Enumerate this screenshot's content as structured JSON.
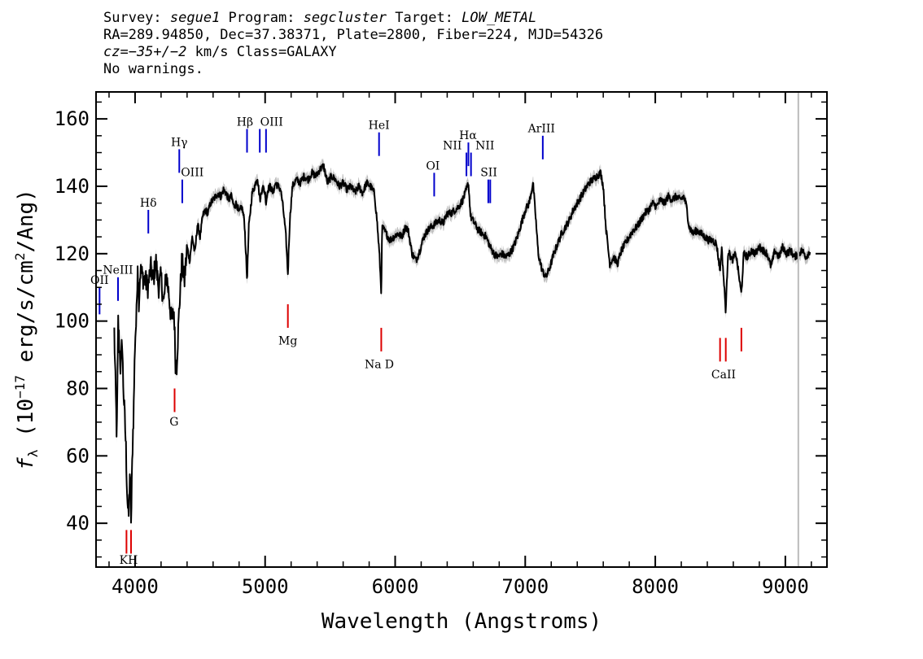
{
  "header": {
    "line1": {
      "survey_label": "Survey: ",
      "survey": "segue1",
      "program_label": " Program: ",
      "program": "segcluster",
      "target_label": " Target: ",
      "target": "LOW_METAL"
    },
    "line2": "RA=289.94850, Dec=37.38371, Plate=2800, Fiber=224, MJD=54326",
    "line3": {
      "cz": "cz=−35+/−2",
      "rest": " km/s Class=GALAXY"
    },
    "line4": "No warnings."
  },
  "chart_data": {
    "type": "line",
    "xlabel": "Wavelength (Angstroms)",
    "ylabel": "f_λ (10^-17 erg/s/cm^2/Ang)",
    "xlim": [
      3700,
      9320
    ],
    "ylim": [
      27,
      168
    ],
    "x_ticks": [
      4000,
      5000,
      6000,
      7000,
      8000,
      9000
    ],
    "y_ticks": [
      40,
      60,
      80,
      100,
      120,
      140,
      160
    ],
    "marker_line_x": 9100,
    "colors": {
      "flux": "#000000",
      "error": "#c0c0c0",
      "emission": "#0000cc",
      "absorption": "#dd0000",
      "marker": "#bbbbbb"
    },
    "spectrum": [
      [
        3840,
        97
      ],
      [
        3850,
        80
      ],
      [
        3860,
        65
      ],
      [
        3870,
        100
      ],
      [
        3880,
        92
      ],
      [
        3890,
        85
      ],
      [
        3900,
        95
      ],
      [
        3910,
        80
      ],
      [
        3920,
        72
      ],
      [
        3930,
        62
      ],
      [
        3940,
        48
      ],
      [
        3950,
        41
      ],
      [
        3960,
        55
      ],
      [
        3970,
        40
      ],
      [
        3980,
        62
      ],
      [
        3990,
        75
      ],
      [
        4000,
        95
      ],
      [
        4010,
        100
      ],
      [
        4020,
        118
      ],
      [
        4030,
        105
      ],
      [
        4040,
        115
      ],
      [
        4060,
        113
      ],
      [
        4080,
        112
      ],
      [
        4100,
        110
      ],
      [
        4120,
        116
      ],
      [
        4140,
        112
      ],
      [
        4160,
        118
      ],
      [
        4180,
        110
      ],
      [
        4200,
        113
      ],
      [
        4220,
        105
      ],
      [
        4240,
        114
      ],
      [
        4260,
        108
      ],
      [
        4280,
        100
      ],
      [
        4300,
        103
      ],
      [
        4310,
        88
      ],
      [
        4320,
        87
      ],
      [
        4340,
        104
      ],
      [
        4360,
        118
      ],
      [
        4380,
        112
      ],
      [
        4400,
        122
      ],
      [
        4420,
        118
      ],
      [
        4440,
        125
      ],
      [
        4460,
        120
      ],
      [
        4480,
        129
      ],
      [
        4500,
        125
      ],
      [
        4520,
        131
      ],
      [
        4540,
        133
      ],
      [
        4560,
        132
      ],
      [
        4580,
        135
      ],
      [
        4600,
        136
      ],
      [
        4620,
        137
      ],
      [
        4640,
        138
      ],
      [
        4660,
        137
      ],
      [
        4680,
        139
      ],
      [
        4700,
        138
      ],
      [
        4720,
        136
      ],
      [
        4740,
        137
      ],
      [
        4760,
        134
      ],
      [
        4780,
        135
      ],
      [
        4800,
        132
      ],
      [
        4820,
        134
      ],
      [
        4840,
        130
      ],
      [
        4850,
        122
      ],
      [
        4861,
        112
      ],
      [
        4875,
        128
      ],
      [
        4900,
        138
      ],
      [
        4920,
        140
      ],
      [
        4940,
        143
      ],
      [
        4960,
        136
      ],
      [
        4980,
        140
      ],
      [
        5000,
        138
      ],
      [
        5007,
        135
      ],
      [
        5020,
        139
      ],
      [
        5040,
        140
      ],
      [
        5060,
        138
      ],
      [
        5080,
        141
      ],
      [
        5100,
        140
      ],
      [
        5120,
        139
      ],
      [
        5140,
        133
      ],
      [
        5160,
        125
      ],
      [
        5175,
        114
      ],
      [
        5190,
        130
      ],
      [
        5210,
        140
      ],
      [
        5240,
        142
      ],
      [
        5270,
        141
      ],
      [
        5300,
        143
      ],
      [
        5330,
        142
      ],
      [
        5360,
        144
      ],
      [
        5390,
        143
      ],
      [
        5420,
        145
      ],
      [
        5450,
        146
      ],
      [
        5480,
        141
      ],
      [
        5510,
        143
      ],
      [
        5540,
        142
      ],
      [
        5570,
        140
      ],
      [
        5600,
        141
      ],
      [
        5630,
        139
      ],
      [
        5660,
        140
      ],
      [
        5690,
        138
      ],
      [
        5720,
        140
      ],
      [
        5750,
        138
      ],
      [
        5780,
        141
      ],
      [
        5810,
        140
      ],
      [
        5840,
        138
      ],
      [
        5860,
        130
      ],
      [
        5880,
        119
      ],
      [
        5893,
        108
      ],
      [
        5900,
        128
      ],
      [
        5930,
        126
      ],
      [
        5960,
        124
      ],
      [
        5990,
        125
      ],
      [
        6020,
        126
      ],
      [
        6050,
        125
      ],
      [
        6080,
        128
      ],
      [
        6100,
        127
      ],
      [
        6130,
        120
      ],
      [
        6160,
        118
      ],
      [
        6190,
        121
      ],
      [
        6220,
        125
      ],
      [
        6250,
        127
      ],
      [
        6280,
        128
      ],
      [
        6310,
        129
      ],
      [
        6340,
        130
      ],
      [
        6370,
        129
      ],
      [
        6400,
        132
      ],
      [
        6430,
        132
      ],
      [
        6460,
        133
      ],
      [
        6490,
        134
      ],
      [
        6520,
        136
      ],
      [
        6540,
        138
      ],
      [
        6563,
        141
      ],
      [
        6580,
        131
      ],
      [
        6610,
        129
      ],
      [
        6640,
        127
      ],
      [
        6670,
        126
      ],
      [
        6700,
        125
      ],
      [
        6730,
        122
      ],
      [
        6760,
        120
      ],
      [
        6790,
        119
      ],
      [
        6820,
        120
      ],
      [
        6850,
        119
      ],
      [
        6880,
        120
      ],
      [
        6910,
        122
      ],
      [
        6940,
        125
      ],
      [
        6970,
        129
      ],
      [
        7000,
        133
      ],
      [
        7030,
        135
      ],
      [
        7060,
        141
      ],
      [
        7080,
        131
      ],
      [
        7100,
        120
      ],
      [
        7130,
        115
      ],
      [
        7160,
        113
      ],
      [
        7190,
        116
      ],
      [
        7220,
        120
      ],
      [
        7250,
        123
      ],
      [
        7280,
        126
      ],
      [
        7310,
        128
      ],
      [
        7340,
        130
      ],
      [
        7370,
        133
      ],
      [
        7400,
        135
      ],
      [
        7430,
        137
      ],
      [
        7460,
        139
      ],
      [
        7490,
        141
      ],
      [
        7520,
        142
      ],
      [
        7550,
        143
      ],
      [
        7580,
        144
      ],
      [
        7600,
        140
      ],
      [
        7620,
        128
      ],
      [
        7650,
        117
      ],
      [
        7680,
        119
      ],
      [
        7710,
        117
      ],
      [
        7740,
        121
      ],
      [
        7770,
        123
      ],
      [
        7800,
        125
      ],
      [
        7830,
        127
      ],
      [
        7860,
        128
      ],
      [
        7890,
        130
      ],
      [
        7920,
        132
      ],
      [
        7950,
        133
      ],
      [
        7980,
        135
      ],
      [
        8010,
        134
      ],
      [
        8040,
        136
      ],
      [
        8070,
        135
      ],
      [
        8100,
        137
      ],
      [
        8130,
        136
      ],
      [
        8160,
        137
      ],
      [
        8190,
        136
      ],
      [
        8220,
        137
      ],
      [
        8240,
        134
      ],
      [
        8260,
        128
      ],
      [
        8290,
        126
      ],
      [
        8320,
        127
      ],
      [
        8350,
        126
      ],
      [
        8380,
        125
      ],
      [
        8410,
        124
      ],
      [
        8440,
        124
      ],
      [
        8470,
        123
      ],
      [
        8498,
        115
      ],
      [
        8510,
        122
      ],
      [
        8542,
        103
      ],
      [
        8560,
        121
      ],
      [
        8590,
        118
      ],
      [
        8620,
        120
      ],
      [
        8662,
        108
      ],
      [
        8680,
        120
      ],
      [
        8710,
        119
      ],
      [
        8740,
        121
      ],
      [
        8770,
        120
      ],
      [
        8800,
        122
      ],
      [
        8830,
        121
      ],
      [
        8860,
        120
      ],
      [
        8890,
        116
      ],
      [
        8920,
        121
      ],
      [
        8950,
        119
      ],
      [
        8980,
        122
      ],
      [
        9010,
        120
      ],
      [
        9040,
        121
      ],
      [
        9070,
        119
      ],
      [
        9100,
        120
      ],
      [
        9130,
        121
      ],
      [
        9160,
        119
      ],
      [
        9190,
        121
      ]
    ],
    "emission_lines": [
      {
        "label": "OII",
        "x": 3727,
        "y_bottom": 102,
        "y_top": 110
      },
      {
        "label": "NeIII",
        "x": 3869,
        "y_bottom": 106,
        "y_top": 113
      },
      {
        "label": "Hδ",
        "x": 4102,
        "y_bottom": 126,
        "y_top": 133
      },
      {
        "label": "Hγ",
        "x": 4340,
        "y_bottom": 144,
        "y_top": 151
      },
      {
        "label": "OIII",
        "x": 4363,
        "y_bottom": 135,
        "y_top": 142
      },
      {
        "label": "Hβ",
        "x": 4861,
        "y_bottom": 150,
        "y_top": 157
      },
      {
        "label": "OIII",
        "x": 4959,
        "y_bottom": 150,
        "y_top": 157
      },
      {
        "label": "OIII",
        "x": 5007,
        "y_bottom": 150,
        "y_top": 157
      },
      {
        "label": "HeI",
        "x": 5876,
        "y_bottom": 149,
        "y_top": 156
      },
      {
        "label": "OI",
        "x": 6300,
        "y_bottom": 137,
        "y_top": 144
      },
      {
        "label": "NII",
        "x": 6548,
        "y_bottom": 143,
        "y_top": 150
      },
      {
        "label": "Hα",
        "x": 6563,
        "y_bottom": 146,
        "y_top": 153
      },
      {
        "label": "NII",
        "x": 6583,
        "y_bottom": 143,
        "y_top": 150
      },
      {
        "label": "SII",
        "x": 6716,
        "y_bottom": 135,
        "y_top": 142
      },
      {
        "label": "SII",
        "x": 6731,
        "y_bottom": 135,
        "y_top": 142
      },
      {
        "label": "ArIII",
        "x": 7135,
        "y_bottom": 148,
        "y_top": 155
      }
    ],
    "emission_labels": [
      {
        "text": "OII",
        "x": 3727,
        "y": 111
      },
      {
        "text": "NeIII",
        "x": 3869,
        "y": 114
      },
      {
        "text": "Hδ",
        "x": 4102,
        "y": 134
      },
      {
        "text": "Hγ",
        "x": 4340,
        "y": 152
      },
      {
        "text": "OIII",
        "x": 4440,
        "y": 143
      },
      {
        "text": "Hβ",
        "x": 4845,
        "y": 158
      },
      {
        "text": "OIII",
        "x": 5050,
        "y": 158
      },
      {
        "text": "HeI",
        "x": 5876,
        "y": 157
      },
      {
        "text": "OI",
        "x": 6290,
        "y": 145
      },
      {
        "text": "NII",
        "x": 6440,
        "y": 151
      },
      {
        "text": "Hα",
        "x": 6560,
        "y": 154
      },
      {
        "text": "NII",
        "x": 6690,
        "y": 151
      },
      {
        "text": "SII",
        "x": 6720,
        "y": 143
      },
      {
        "text": "ArIII",
        "x": 7125,
        "y": 156
      }
    ],
    "absorption_lines": [
      {
        "label": "K",
        "x": 3934,
        "y_bottom": 31,
        "y_top": 38
      },
      {
        "label": "H",
        "x": 3969,
        "y_bottom": 31,
        "y_top": 38
      },
      {
        "label": "G",
        "x": 4304,
        "y_bottom": 73,
        "y_top": 80
      },
      {
        "label": "Mg",
        "x": 5175,
        "y_bottom": 98,
        "y_top": 105
      },
      {
        "label": "Na",
        "x": 5893,
        "y_bottom": 91,
        "y_top": 98
      },
      {
        "label": "CaII",
        "x": 8498,
        "y_bottom": 88,
        "y_top": 95
      },
      {
        "label": "CaII",
        "x": 8542,
        "y_bottom": 88,
        "y_top": 95
      },
      {
        "label": "CaII",
        "x": 8662,
        "y_bottom": 91,
        "y_top": 98
      }
    ],
    "absorption_labels": [
      {
        "text": "KH",
        "x": 3950,
        "y": 28
      },
      {
        "text": "G",
        "x": 4300,
        "y": 69
      },
      {
        "text": "Mg",
        "x": 5175,
        "y": 93
      },
      {
        "text": "Na",
        "x": 5830,
        "y": 86
      },
      {
        "text": "D",
        "x": 5955,
        "y": 86
      },
      {
        "text": "CaII",
        "x": 8525,
        "y": 83
      }
    ]
  }
}
